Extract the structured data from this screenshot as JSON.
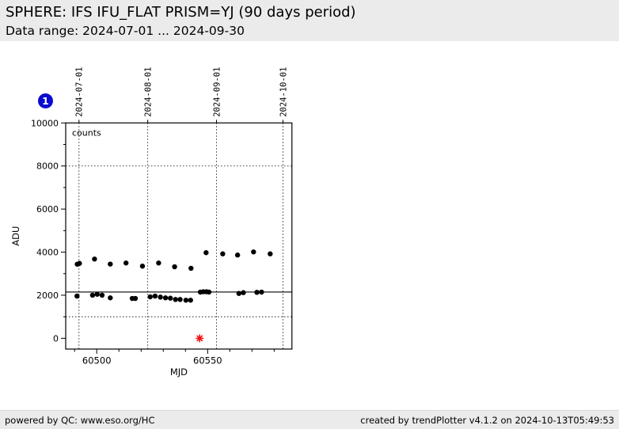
{
  "header": {
    "title": "SPHERE: IFS IFU_FLAT PRISM=YJ (90 days period)",
    "subtitle": "Data range: 2024-07-01 ... 2024-09-30"
  },
  "badge": {
    "label": "1"
  },
  "footer": {
    "left": "powered by QC: www.eso.org/HC",
    "right": "created by trendPlotter v4.1.2 on 2024-10-13T05:49:53"
  },
  "colors": {
    "header_bg": "#ebebeb",
    "plot_bg": "#ffffff",
    "frame": "#000000",
    "point": "#000000",
    "outlier": "#ee1111",
    "badge": "#0a0ad2"
  },
  "chart_data": {
    "type": "scatter",
    "inplot_label": "counts",
    "xlabel": "MJD",
    "ylabel": "ADU",
    "xlim": [
      60486,
      60588
    ],
    "ylim": [
      -500,
      10000
    ],
    "x_major_ticks": [
      60500,
      60550
    ],
    "x_minor_step": 10,
    "y_major_ticks": [
      0,
      2000,
      4000,
      6000,
      8000,
      10000
    ],
    "y_minor_step": 1000,
    "top_axis_dates": [
      {
        "mjd": 60492,
        "label": "2024-07-01"
      },
      {
        "mjd": 60523,
        "label": "2024-08-01"
      },
      {
        "mjd": 60554,
        "label": "2024-09-01"
      },
      {
        "mjd": 60584,
        "label": "2024-10-01"
      }
    ],
    "grid": "dotted vertical lines at month starts, dotted horizontal threshold lines",
    "mean_line": 2150,
    "threshold_lines": [
      1000,
      8000
    ],
    "legend_position": "none",
    "series": [
      {
        "name": "counts",
        "marker": "dot",
        "color": "#000000",
        "points": [
          [
            60491.2,
            3440
          ],
          [
            60492.2,
            3480
          ],
          [
            60499.0,
            3680
          ],
          [
            60506.1,
            3445
          ],
          [
            60513.2,
            3495
          ],
          [
            60520.6,
            3350
          ],
          [
            60527.9,
            3495
          ],
          [
            60535.1,
            3320
          ],
          [
            60542.5,
            3250
          ],
          [
            60549.3,
            3975
          ],
          [
            60556.8,
            3920
          ],
          [
            60563.5,
            3865
          ],
          [
            60570.7,
            4010
          ],
          [
            60578.2,
            3920
          ],
          [
            60491.1,
            1960
          ],
          [
            60498.1,
            2000
          ],
          [
            60500.2,
            2045
          ],
          [
            60502.4,
            2000
          ],
          [
            60506.1,
            1878
          ],
          [
            60516.0,
            1850
          ],
          [
            60517.4,
            1850
          ],
          [
            60524.1,
            1925
          ],
          [
            60526.3,
            1960
          ],
          [
            60528.7,
            1912
          ],
          [
            60531.0,
            1878
          ],
          [
            60533.2,
            1862
          ],
          [
            60535.5,
            1802
          ],
          [
            60537.6,
            1802
          ],
          [
            60540.2,
            1768
          ],
          [
            60542.3,
            1768
          ],
          [
            60546.7,
            2145
          ],
          [
            60548.1,
            2162
          ],
          [
            60549.5,
            2162
          ],
          [
            60550.6,
            2145
          ],
          [
            60564.1,
            2082
          ],
          [
            60566.1,
            2120
          ],
          [
            60572.2,
            2135
          ],
          [
            60574.3,
            2145
          ]
        ]
      }
    ],
    "outliers": [
      {
        "marker": "asterisk",
        "color": "#ee1111",
        "x": 60546.4,
        "y": 0
      }
    ]
  }
}
